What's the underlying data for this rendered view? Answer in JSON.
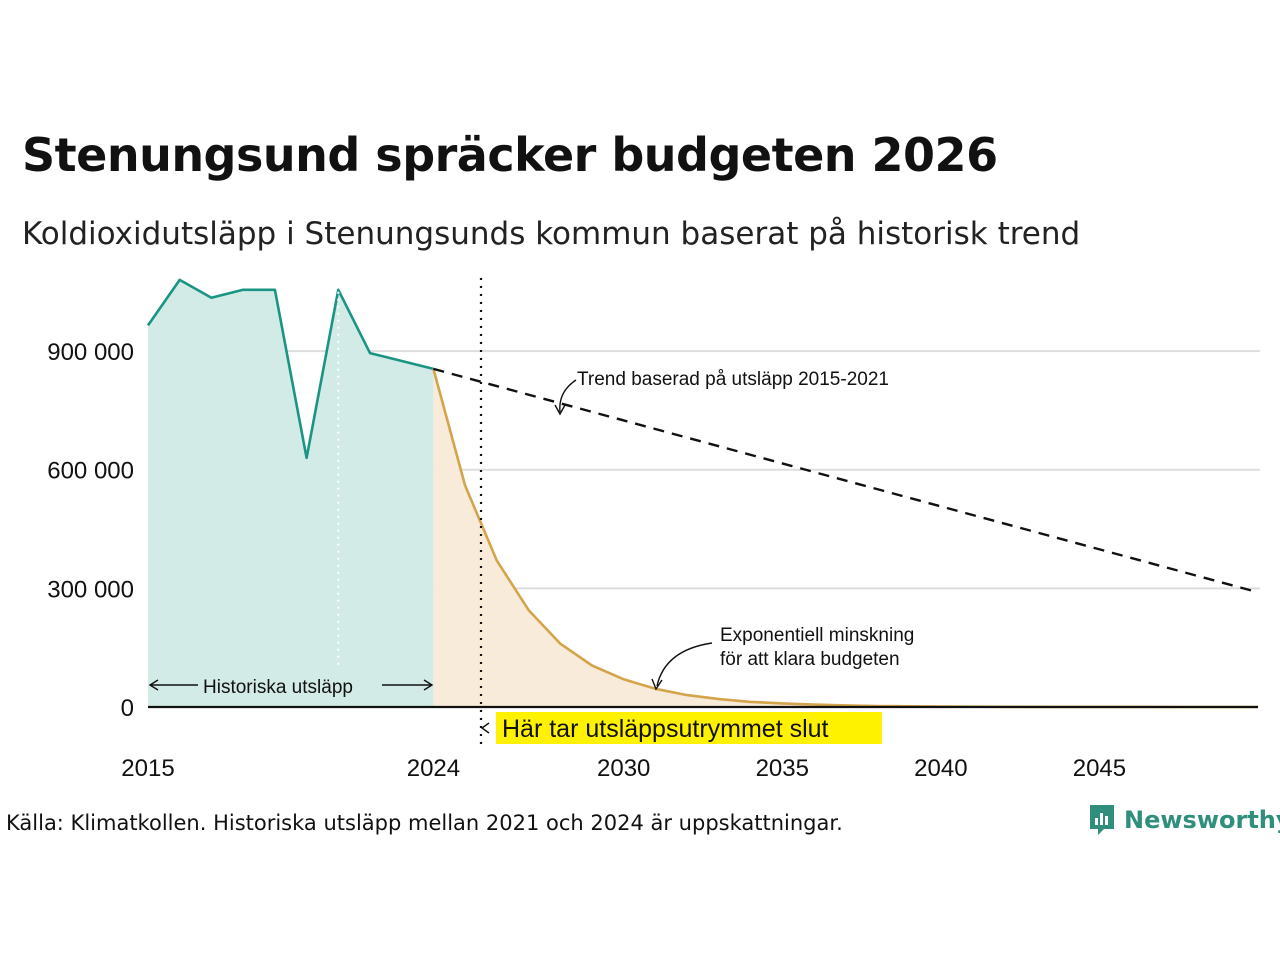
{
  "title": "Stenungsund spräcker budgeten 2026",
  "subtitle": "Koldioxidutsläpp i Stenungsunds kommun baserat på historisk trend",
  "source": "Källa: Klimatkollen. Historiska utsläpp mellan 2021 och 2024 är uppskattningar.",
  "brand": {
    "name": "Newsworthy",
    "color": "#2f8f7c",
    "icon": "bar-chart-icon"
  },
  "chart_data": {
    "type": "area",
    "xlim": [
      2015,
      2050
    ],
    "ylim": [
      0,
      1100000
    ],
    "grid": true,
    "x_ticks": [
      2015,
      2024,
      2030,
      2035,
      2040,
      2045
    ],
    "y_ticks": [
      0,
      300000,
      600000,
      900000
    ],
    "y_tick_labels": [
      "0",
      "300 000",
      "600 000",
      "900 000"
    ],
    "series": [
      {
        "key": "historical",
        "style": "area",
        "color": "#1a9483",
        "fill": "#d3ebe6",
        "x": [
          2015,
          2016,
          2017,
          2018,
          2019,
          2020,
          2021,
          2022,
          2024
        ],
        "y": [
          965000,
          1080000,
          1035000,
          1055000,
          1055000,
          630000,
          1055000,
          895000,
          855000
        ]
      },
      {
        "key": "exponential",
        "style": "area",
        "color": "#d4a44a",
        "fill": "#f8ebd9",
        "x": [
          2024,
          2025,
          2026,
          2027,
          2028,
          2029,
          2030,
          2031,
          2032,
          2033,
          2034,
          2035,
          2036,
          2037,
          2038,
          2039,
          2040,
          2042,
          2044,
          2046,
          2048,
          2050
        ],
        "y": [
          855000,
          560000,
          370000,
          245000,
          160000,
          105000,
          70000,
          46000,
          30000,
          20000,
          13000,
          9000,
          6000,
          4000,
          2600,
          1700,
          1200,
          600,
          300,
          150,
          80,
          40
        ]
      },
      {
        "key": "trend",
        "style": "dashed",
        "color": "#111111",
        "x": [
          2024,
          2050
        ],
        "y": [
          855000,
          290000
        ]
      }
    ],
    "markers": {
      "dotted_white_x": 2021,
      "budget_end_x": 2025.5
    },
    "annotations": {
      "trend": "Trend baserad på utsläpp 2015-2021",
      "exp_line1": "Exponentiell minskning",
      "exp_line2": "för att klara budgeten",
      "historical": "Historiska utsläpp",
      "budget_end": "Här tar utsläppsutrymmet slut"
    }
  }
}
